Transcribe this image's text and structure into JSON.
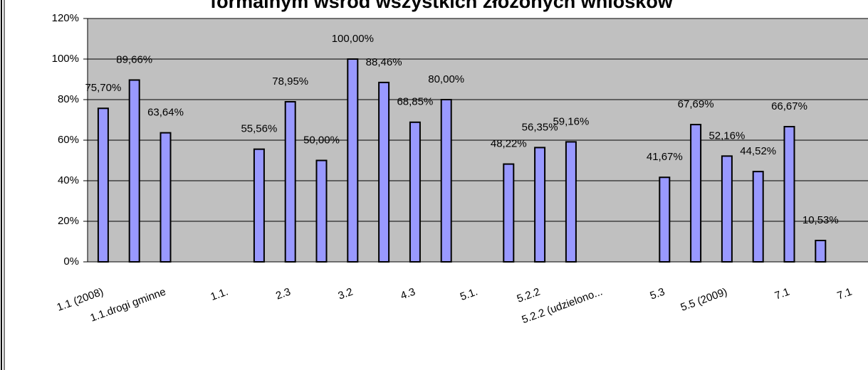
{
  "chart_data": {
    "type": "bar",
    "title": "formalnym wśród wszystkich złożonych wniosków",
    "categories": [
      "1.1 (2008)",
      null,
      "1.1.drogi gminne",
      null,
      "1.1.",
      null,
      "2.3",
      null,
      "3.2",
      null,
      "4.3",
      null,
      "5.1.",
      null,
      "5.2.2",
      null,
      "5.2.2 (udzielono...",
      null,
      "5.3",
      null,
      "5.5 (2009)",
      null,
      "7.1",
      null,
      "7.1"
    ],
    "values": [
      75.7,
      89.66,
      63.64,
      null,
      null,
      55.56,
      78.95,
      50,
      100,
      88.46,
      68.85,
      80,
      null,
      48.22,
      56.35,
      59.16,
      null,
      null,
      41.67,
      67.69,
      52.16,
      44.52,
      66.67,
      10.53,
      null
    ],
    "value_labels": [
      "75,70%",
      "89,66%",
      "63,64%",
      null,
      null,
      "55,56%",
      "78,95%",
      "50,00%",
      "100,00%",
      "88,46%",
      "68,85%",
      "80,00%",
      null,
      "48,22%",
      "56,35%",
      "59,16%",
      null,
      null,
      "41,67%",
      "67,69%",
      "52,16%",
      "44,52%",
      "66,67%",
      "10,53%",
      null
    ],
    "color": "#9999ff",
    "ylim": [
      0,
      120
    ],
    "yticks": [
      {
        "value": 0,
        "label": "0%"
      },
      {
        "value": 20,
        "label": "20%"
      },
      {
        "value": 40,
        "label": "40%"
      },
      {
        "value": 60,
        "label": "60%"
      },
      {
        "value": 80,
        "label": "80%"
      },
      {
        "value": 100,
        "label": "100%"
      },
      {
        "value": 120,
        "label": "120%"
      }
    ],
    "grid": true
  }
}
